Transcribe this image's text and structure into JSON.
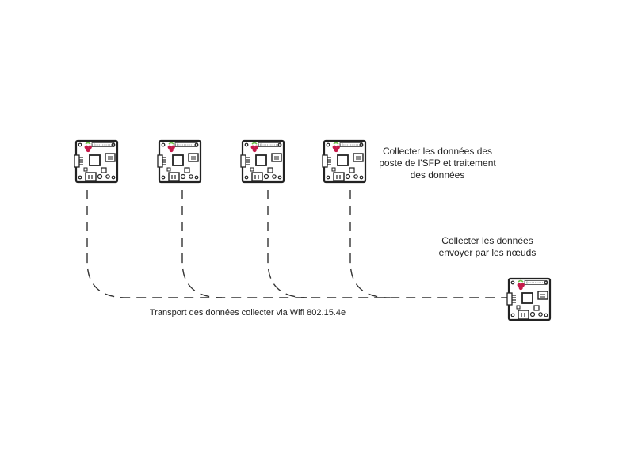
{
  "labels": {
    "nodes_line1": "Collecter les données des",
    "nodes_line2": "poste de l'SFP et traitement",
    "nodes_line3": "des données",
    "gateway_line1": "Collecter les données",
    "gateway_line2": "envoyer par les nœuds",
    "transport": "Transport des données collecter via Wifi 802.15.4e"
  },
  "boards": [
    {
      "id": "node-1",
      "role": "sensor-node",
      "icon": "raspberry-pi-board-icon"
    },
    {
      "id": "node-2",
      "role": "sensor-node",
      "icon": "raspberry-pi-board-icon"
    },
    {
      "id": "node-3",
      "role": "sensor-node",
      "icon": "raspberry-pi-board-icon"
    },
    {
      "id": "node-4",
      "role": "sensor-node",
      "icon": "raspberry-pi-board-icon"
    },
    {
      "id": "gateway",
      "role": "gateway",
      "icon": "raspberry-pi-board-icon"
    }
  ],
  "colors": {
    "line": "#333333",
    "board_stroke": "#222222",
    "raspberry_red": "#c51a4a",
    "leaf_green": "#6cc04a"
  }
}
